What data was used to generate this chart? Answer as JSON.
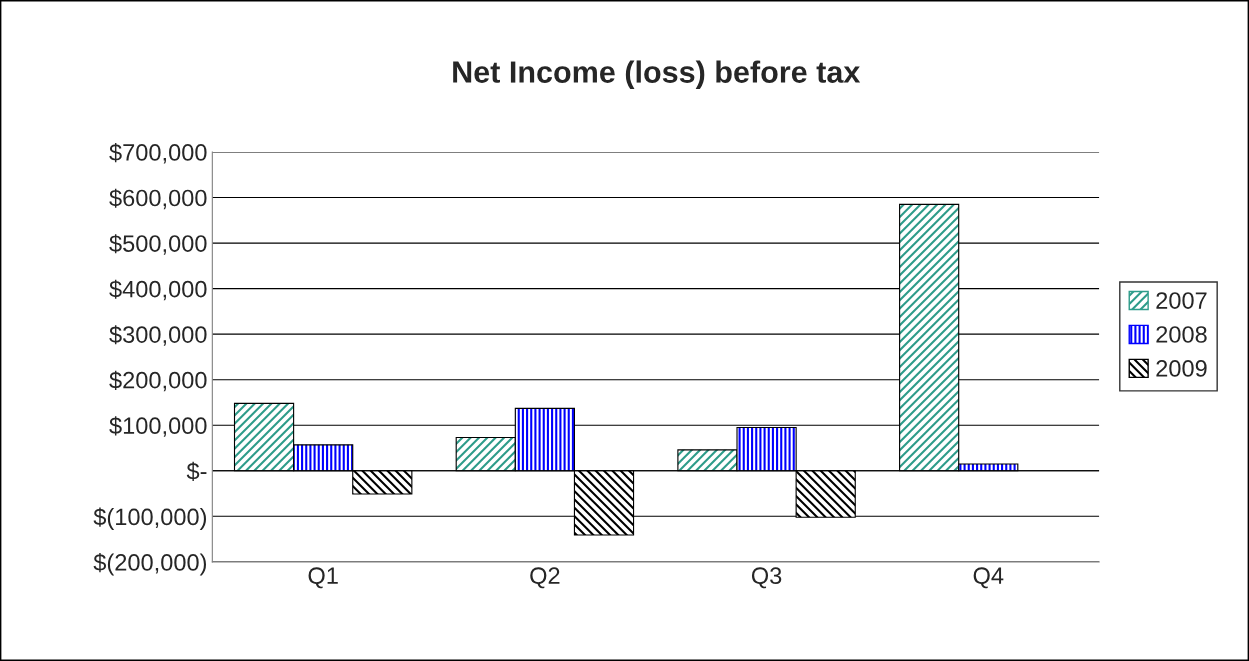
{
  "chart_data": {
    "type": "bar",
    "title": "Net Income (loss) before tax",
    "categories": [
      "Q1",
      "Q2",
      "Q3",
      "Q4"
    ],
    "series": [
      {
        "name": "2007",
        "color": "#2e9c8a",
        "values": [
          148000,
          73000,
          46000,
          585000
        ]
      },
      {
        "name": "2008",
        "color": "#0000ff",
        "values": [
          57000,
          137000,
          95000,
          15000
        ]
      },
      {
        "name": "2009",
        "color": "#000000",
        "values": [
          -51000,
          -141000,
          -102000,
          null
        ]
      }
    ],
    "ylim": [
      -200000,
      700000
    ],
    "yticks": [
      {
        "value": -200000,
        "label": "$(200,000)"
      },
      {
        "value": -100000,
        "label": "$(100,000)"
      },
      {
        "value": 0,
        "label": "$-"
      },
      {
        "value": 100000,
        "label": "$100,000"
      },
      {
        "value": 200000,
        "label": "$200,000"
      },
      {
        "value": 300000,
        "label": "$300,000"
      },
      {
        "value": 400000,
        "label": "$400,000"
      },
      {
        "value": 500000,
        "label": "$500,000"
      },
      {
        "value": 600000,
        "label": "$600,000"
      },
      {
        "value": 700000,
        "label": "$700,000"
      }
    ],
    "grid": "y",
    "legend": "right"
  }
}
